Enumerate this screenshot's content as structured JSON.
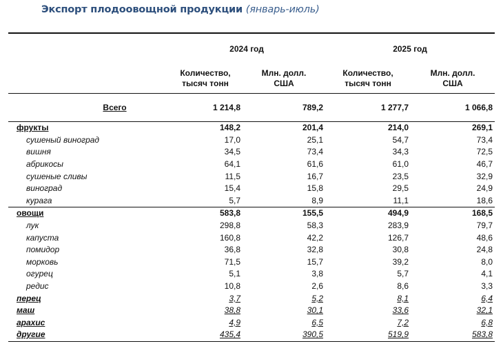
{
  "title": "Экспорт плодоовощной продукции",
  "period": "(январь-июль)",
  "years": [
    "2024 год",
    "2025 год"
  ],
  "subheaders": {
    "qty_line1": "Количество,",
    "qty_line2": "тысяч тонн",
    "usd_line1": "Млн. долл.",
    "usd_line2": "США"
  },
  "total": {
    "name": "Всего",
    "values": [
      "1 214,8",
      "789,2",
      "1 277,7",
      "1 066,8"
    ]
  },
  "rows": [
    {
      "type": "cat",
      "name": "фрукты",
      "values": [
        "148,2",
        "201,4",
        "214,0",
        "269,1"
      ]
    },
    {
      "type": "item",
      "name": "сушеный виноград",
      "values": [
        "17,0",
        "25,1",
        "54,7",
        "73,4"
      ]
    },
    {
      "type": "item",
      "name": "вишня",
      "values": [
        "34,5",
        "73,4",
        "34,3",
        "72,5"
      ]
    },
    {
      "type": "item",
      "name": "абрикосы",
      "values": [
        "64,1",
        "61,6",
        "61,0",
        "46,7"
      ]
    },
    {
      "type": "item",
      "name": "сушеные сливы",
      "values": [
        "11,5",
        "16,7",
        "23,5",
        "32,9"
      ]
    },
    {
      "type": "item",
      "name": "виноград",
      "values": [
        "15,4",
        "15,8",
        "29,5",
        "24,9"
      ]
    },
    {
      "type": "item",
      "name": "курага",
      "values": [
        "5,7",
        "8,9",
        "11,1",
        "18,6"
      ]
    },
    {
      "type": "cat",
      "name": "овощи",
      "values": [
        "583,8",
        "155,5",
        "494,9",
        "168,5"
      ]
    },
    {
      "type": "item",
      "name": "лук",
      "values": [
        "298,8",
        "58,3",
        "283,9",
        "79,7"
      ]
    },
    {
      "type": "item",
      "name": "капуста",
      "values": [
        "160,8",
        "42,2",
        "126,7",
        "48,6"
      ]
    },
    {
      "type": "item",
      "name": "помидор",
      "values": [
        "36,8",
        "32,8",
        "30,8",
        "24,8"
      ]
    },
    {
      "type": "item",
      "name": "морковь",
      "values": [
        "71,5",
        "15,7",
        "39,2",
        "8,0"
      ]
    },
    {
      "type": "item",
      "name": "огурец",
      "values": [
        "5,1",
        "3,8",
        "5,7",
        "4,1"
      ]
    },
    {
      "type": "item",
      "name": "редис",
      "values": [
        "10,8",
        "2,6",
        "8,6",
        "3,3"
      ]
    },
    {
      "type": "ul",
      "name": "перец",
      "values": [
        "3,7",
        "5,2",
        "8,1",
        "6,4"
      ]
    },
    {
      "type": "ul",
      "name": "маш",
      "values": [
        "38,8",
        "30,1",
        "33,6",
        "32,1"
      ]
    },
    {
      "type": "ul",
      "name": "арахис",
      "values": [
        "4,9",
        "6,5",
        "7,2",
        "6,8"
      ]
    },
    {
      "type": "ul",
      "name": "другие",
      "values": [
        "435,4",
        "390,5",
        "519,9",
        "583,8"
      ]
    }
  ]
}
